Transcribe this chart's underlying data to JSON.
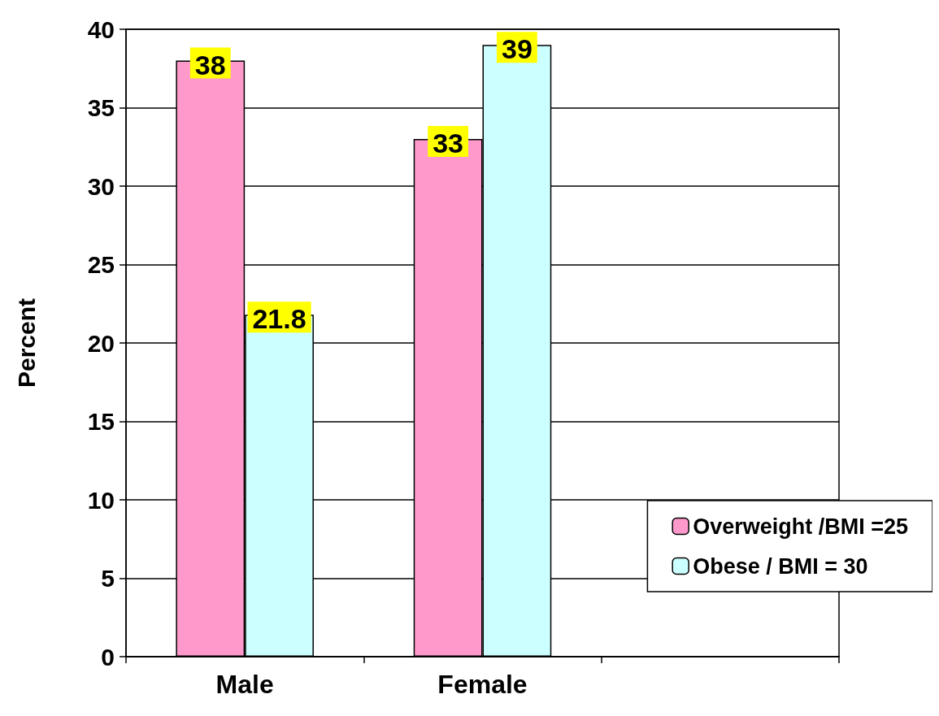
{
  "chart_data": {
    "type": "bar",
    "ylabel": "Percent",
    "categories": [
      "Male",
      "Female",
      null
    ],
    "series": [
      {
        "name": "Overweight /BMI =25",
        "color": "#ff99cc",
        "values": [
          38,
          33,
          null
        ]
      },
      {
        "name": "Obese / BMI = 30",
        "color": "#ccffff",
        "values": [
          21.8,
          39,
          null
        ]
      }
    ],
    "ylim": [
      0,
      40
    ],
    "yticks": [
      0,
      5,
      10,
      15,
      20,
      25,
      30,
      35,
      40
    ],
    "grid": "y",
    "legend": "bottom right",
    "data_labels": true
  }
}
